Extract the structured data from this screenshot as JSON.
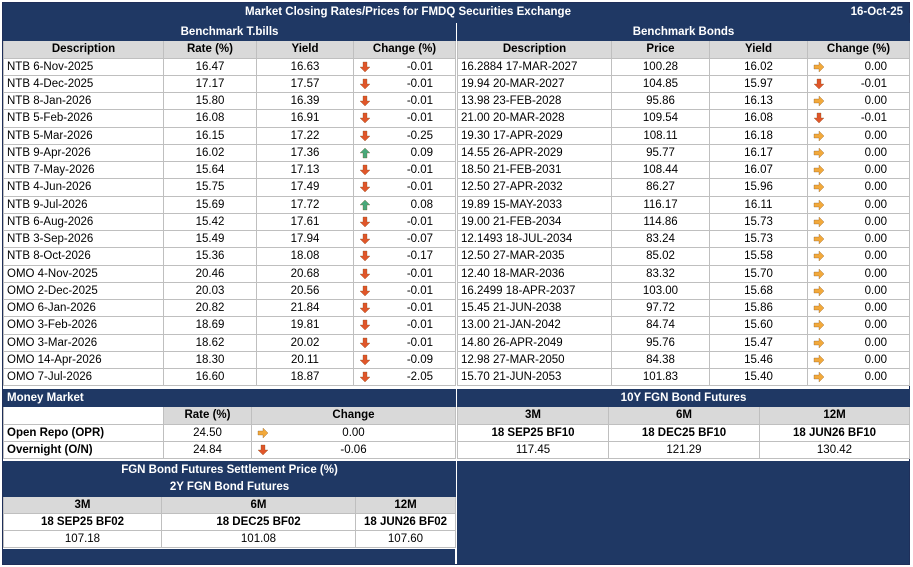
{
  "title": "Market Closing Rates/Prices for FMDQ Securities Exchange",
  "date": "16-Oct-25",
  "tbills": {
    "section": "Benchmark T.bills",
    "headers": [
      "Description",
      "Rate (%)",
      "Yield",
      "Change (%)"
    ],
    "rows": [
      {
        "desc": "NTB 6-Nov-2025",
        "rate": "16.47",
        "yield": "16.63",
        "dir": "down",
        "chg": "-0.01"
      },
      {
        "desc": "NTB 4-Dec-2025",
        "rate": "17.17",
        "yield": "17.57",
        "dir": "down",
        "chg": "-0.01"
      },
      {
        "desc": "NTB 8-Jan-2026",
        "rate": "15.80",
        "yield": "16.39",
        "dir": "down",
        "chg": "-0.01"
      },
      {
        "desc": "NTB 5-Feb-2026",
        "rate": "16.08",
        "yield": "16.91",
        "dir": "down",
        "chg": "-0.01"
      },
      {
        "desc": "NTB 5-Mar-2026",
        "rate": "16.15",
        "yield": "17.22",
        "dir": "down",
        "chg": "-0.25"
      },
      {
        "desc": "NTB 9-Apr-2026",
        "rate": "16.02",
        "yield": "17.36",
        "dir": "up",
        "chg": "0.09"
      },
      {
        "desc": "NTB 7-May-2026",
        "rate": "15.64",
        "yield": "17.13",
        "dir": "down",
        "chg": "-0.01"
      },
      {
        "desc": "NTB 4-Jun-2026",
        "rate": "15.75",
        "yield": "17.49",
        "dir": "down",
        "chg": "-0.01"
      },
      {
        "desc": "NTB 9-Jul-2026",
        "rate": "15.69",
        "yield": "17.72",
        "dir": "up",
        "chg": "0.08"
      },
      {
        "desc": "NTB 6-Aug-2026",
        "rate": "15.42",
        "yield": "17.61",
        "dir": "down",
        "chg": "-0.01"
      },
      {
        "desc": "NTB 3-Sep-2026",
        "rate": "15.49",
        "yield": "17.94",
        "dir": "down",
        "chg": "-0.07"
      },
      {
        "desc": "NTB 8-Oct-2026",
        "rate": "15.36",
        "yield": "18.08",
        "dir": "down",
        "chg": "-0.17"
      },
      {
        "desc": "OMO 4-Nov-2025",
        "rate": "20.46",
        "yield": "20.68",
        "dir": "down",
        "chg": "-0.01"
      },
      {
        "desc": "OMO 2-Dec-2025",
        "rate": "20.03",
        "yield": "20.56",
        "dir": "down",
        "chg": "-0.01"
      },
      {
        "desc": "OMO 6-Jan-2026",
        "rate": "20.82",
        "yield": "21.84",
        "dir": "down",
        "chg": "-0.01"
      },
      {
        "desc": "OMO 3-Feb-2026",
        "rate": "18.69",
        "yield": "19.81",
        "dir": "down",
        "chg": "-0.01"
      },
      {
        "desc": "OMO 3-Mar-2026",
        "rate": "18.62",
        "yield": "20.02",
        "dir": "down",
        "chg": "-0.01"
      },
      {
        "desc": "OMO 14-Apr-2026",
        "rate": "18.30",
        "yield": "20.11",
        "dir": "down",
        "chg": "-0.09"
      },
      {
        "desc": "OMO 7-Jul-2026",
        "rate": "16.60",
        "yield": "18.87",
        "dir": "down",
        "chg": "-2.05"
      }
    ]
  },
  "bonds": {
    "section": "Benchmark Bonds",
    "headers": [
      "Description",
      "Price",
      "Yield",
      "Change (%)"
    ],
    "rows": [
      {
        "desc": "16.2884 17-MAR-2027",
        "price": "100.28",
        "yield": "16.02",
        "dir": "flat",
        "chg": "0.00"
      },
      {
        "desc": "19.94 20-MAR-2027",
        "price": "104.85",
        "yield": "15.97",
        "dir": "down",
        "chg": "-0.01"
      },
      {
        "desc": "13.98 23-FEB-2028",
        "price": "95.86",
        "yield": "16.13",
        "dir": "flat",
        "chg": "0.00"
      },
      {
        "desc": "21.00 20-MAR-2028",
        "price": "109.54",
        "yield": "16.08",
        "dir": "down",
        "chg": "-0.01"
      },
      {
        "desc": "19.30 17-APR-2029",
        "price": "108.11",
        "yield": "16.18",
        "dir": "flat",
        "chg": "0.00"
      },
      {
        "desc": "14.55 26-APR-2029",
        "price": "95.77",
        "yield": "16.17",
        "dir": "flat",
        "chg": "0.00"
      },
      {
        "desc": "18.50 21-FEB-2031",
        "price": "108.44",
        "yield": "16.07",
        "dir": "flat",
        "chg": "0.00"
      },
      {
        "desc": "12.50 27-APR-2032",
        "price": "86.27",
        "yield": "15.96",
        "dir": "flat",
        "chg": "0.00"
      },
      {
        "desc": "19.89 15-MAY-2033",
        "price": "116.17",
        "yield": "16.11",
        "dir": "flat",
        "chg": "0.00"
      },
      {
        "desc": "19.00 21-FEB-2034",
        "price": "114.86",
        "yield": "15.73",
        "dir": "flat",
        "chg": "0.00"
      },
      {
        "desc": "12.1493 18-JUL-2034",
        "price": "83.24",
        "yield": "15.73",
        "dir": "flat",
        "chg": "0.00"
      },
      {
        "desc": "12.50 27-MAR-2035",
        "price": "85.02",
        "yield": "15.58",
        "dir": "flat",
        "chg": "0.00"
      },
      {
        "desc": "12.40 18-MAR-2036",
        "price": "83.32",
        "yield": "15.70",
        "dir": "flat",
        "chg": "0.00"
      },
      {
        "desc": "16.2499 18-APR-2037",
        "price": "103.00",
        "yield": "15.68",
        "dir": "flat",
        "chg": "0.00"
      },
      {
        "desc": "15.45 21-JUN-2038",
        "price": "97.72",
        "yield": "15.86",
        "dir": "flat",
        "chg": "0.00"
      },
      {
        "desc": "13.00 21-JAN-2042",
        "price": "84.74",
        "yield": "15.60",
        "dir": "flat",
        "chg": "0.00"
      },
      {
        "desc": "14.80 26-APR-2049",
        "price": "95.76",
        "yield": "15.47",
        "dir": "flat",
        "chg": "0.00"
      },
      {
        "desc": "12.98 27-MAR-2050",
        "price": "84.38",
        "yield": "15.46",
        "dir": "flat",
        "chg": "0.00"
      },
      {
        "desc": "15.70 21-JUN-2053",
        "price": "101.83",
        "yield": "15.40",
        "dir": "flat",
        "chg": "0.00"
      }
    ]
  },
  "money_market": {
    "section": "Money Market",
    "headers": [
      "Rate (%)",
      "Change"
    ],
    "rows": [
      {
        "desc": "Open Repo (OPR)",
        "rate": "24.50",
        "dir": "flat",
        "chg": "0.00"
      },
      {
        "desc": "Overnight (O/N)",
        "rate": "24.84",
        "dir": "down",
        "chg": "-0.06"
      }
    ]
  },
  "fut10": {
    "section": "10Y FGN Bond Futures",
    "tenors": [
      "3M",
      "6M",
      "12M"
    ],
    "contracts": [
      "18 SEP25 BF10",
      "18 DEC25 BF10",
      "18 JUN26 BF10"
    ],
    "prices": [
      "117.45",
      "121.29",
      "130.42"
    ]
  },
  "fut_settle_title": "FGN Bond Futures Settlement Price (%)",
  "fut2": {
    "section": "2Y FGN Bond Futures",
    "tenors": [
      "3M",
      "6M",
      "12M"
    ],
    "contracts": [
      "18 SEP25 BF02",
      "18 DEC25 BF02",
      "18 JUN26 BF02"
    ],
    "prices": [
      "107.18",
      "101.08",
      "107.60"
    ]
  },
  "colors": {
    "navy": "#1f3864",
    "header_grey": "#d9d9d9",
    "down": "#e0562a",
    "up": "#4aa87a",
    "flat": "#f2a93b"
  },
  "icons": {
    "down": "arrow-down-icon",
    "up": "arrow-up-icon",
    "flat": "arrow-right-icon"
  }
}
